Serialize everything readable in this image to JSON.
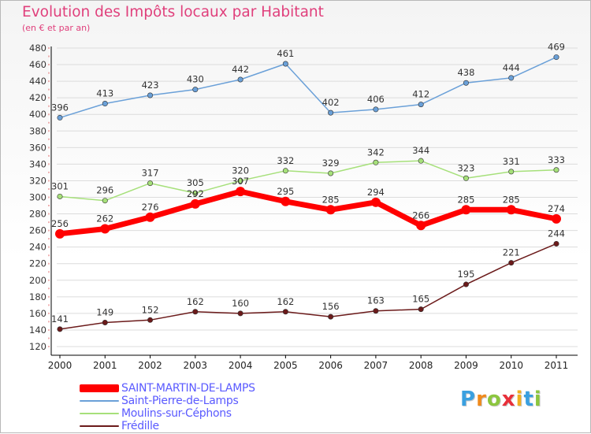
{
  "chart_data": {
    "type": "line",
    "title": "Evolution des Impôts locaux par Habitant",
    "subtitle": "(en € et par an)",
    "xlabel": "",
    "ylabel": "",
    "x": [
      "2000",
      "2001",
      "2002",
      "2003",
      "2004",
      "2005",
      "2006",
      "2007",
      "2008",
      "2009",
      "2010",
      "2011"
    ],
    "ylim": [
      120,
      480
    ],
    "yticks": [
      120,
      140,
      160,
      180,
      200,
      220,
      240,
      260,
      280,
      300,
      320,
      340,
      360,
      380,
      400,
      420,
      440,
      460,
      480
    ],
    "grid": true,
    "legend_position": "bottom-left",
    "series": [
      {
        "name": "SAINT-MARTIN-DE-LAMPS",
        "color": "#ff0000",
        "emphasis": true,
        "values": [
          256,
          262,
          276,
          292,
          307,
          295,
          285,
          294,
          266,
          285,
          285,
          274
        ]
      },
      {
        "name": "Saint-Pierre-de-Lamps",
        "color": "#6aa0d8",
        "emphasis": false,
        "values": [
          396,
          413,
          423,
          430,
          442,
          461,
          402,
          406,
          412,
          438,
          444,
          469
        ]
      },
      {
        "name": "Moulins-sur-Céphons",
        "color": "#a6e07a",
        "emphasis": false,
        "values": [
          301,
          296,
          317,
          305,
          320,
          332,
          329,
          342,
          344,
          323,
          331,
          333
        ]
      },
      {
        "name": "Frédille",
        "color": "#6b1a1a",
        "emphasis": false,
        "values": [
          141,
          149,
          152,
          162,
          160,
          162,
          156,
          163,
          165,
          195,
          221,
          244
        ]
      }
    ]
  },
  "logo": {
    "letters": [
      "P",
      "r",
      "o",
      "x",
      "i",
      "t",
      "i"
    ],
    "colors": [
      "#3aa0e0",
      "#f08a1c",
      "#8cc63f",
      "#e8303a",
      "#f0b020",
      "#3aa0e0",
      "#8cc63f"
    ]
  }
}
